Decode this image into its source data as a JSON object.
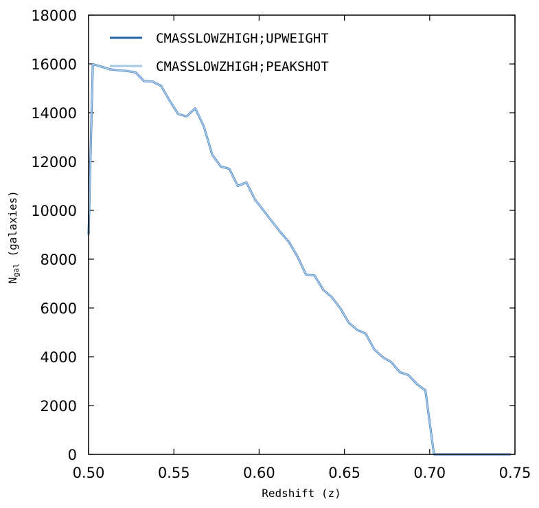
{
  "chart_data": {
    "type": "line",
    "xlabel": "Redshift (z)",
    "ylabel_main": "N",
    "ylabel_sub": "gal",
    "ylabel_rest": " (galaxies)",
    "xlim": [
      0.5,
      0.75
    ],
    "ylim": [
      0,
      18000
    ],
    "xticks": [
      0.5,
      0.55,
      0.6,
      0.65,
      0.7,
      0.75
    ],
    "xtick_labels": [
      "0.50",
      "0.55",
      "0.60",
      "0.65",
      "0.70",
      "0.75"
    ],
    "yticks": [
      0,
      2000,
      4000,
      6000,
      8000,
      10000,
      12000,
      14000,
      16000,
      18000
    ],
    "ytick_labels": [
      "0",
      "2000",
      "4000",
      "6000",
      "8000",
      "10000",
      "12000",
      "14000",
      "16000",
      "18000"
    ],
    "grid": false,
    "legend_position": "top-left",
    "x": [
      0.5,
      0.5025,
      0.5075,
      0.5125,
      0.5175,
      0.5225,
      0.5275,
      0.5325,
      0.5375,
      0.5425,
      0.5475,
      0.5525,
      0.5575,
      0.5625,
      0.5675,
      0.5725,
      0.5775,
      0.5825,
      0.5875,
      0.5925,
      0.5975,
      0.6025,
      0.6075,
      0.6125,
      0.6175,
      0.6225,
      0.6275,
      0.6325,
      0.6375,
      0.6425,
      0.6475,
      0.6525,
      0.6575,
      0.6625,
      0.6675,
      0.6725,
      0.6775,
      0.6825,
      0.6875,
      0.6925,
      0.6975,
      0.7025,
      0.7075,
      0.7125,
      0.7175,
      0.7225,
      0.7275,
      0.7325,
      0.7375,
      0.7425,
      0.7475
    ],
    "series": [
      {
        "name": "CMASSLOWZHIGH;UPWEIGHT",
        "color": "#2166ac",
        "values": [
          9000,
          15990,
          15890,
          15780,
          15740,
          15710,
          15660,
          15300,
          15280,
          15100,
          14500,
          13950,
          13850,
          14180,
          13450,
          12280,
          11800,
          11700,
          11000,
          11150,
          10450,
          10000,
          9550,
          9100,
          8700,
          8100,
          7370,
          7330,
          6750,
          6450,
          6000,
          5400,
          5100,
          4950,
          4300,
          3980,
          3780,
          3370,
          3250,
          2880,
          2620,
          0,
          0,
          0,
          0,
          0,
          0,
          0,
          0,
          0,
          0
        ]
      },
      {
        "name": "CMASSLOWZHIGH;PEAKSHOT",
        "color": "#a6c8e8",
        "values": [
          9000,
          15990,
          15890,
          15780,
          15740,
          15710,
          15660,
          15300,
          15280,
          15100,
          14500,
          13950,
          13850,
          14180,
          13450,
          12280,
          11800,
          11700,
          11000,
          11150,
          10450,
          10000,
          9550,
          9100,
          8700,
          8100,
          7370,
          7330,
          6750,
          6450,
          6000,
          5400,
          5100,
          4950,
          4300,
          3980,
          3780,
          3370,
          3250,
          2880,
          2620,
          0,
          0,
          0,
          0,
          0,
          0,
          0,
          0,
          0,
          0
        ]
      }
    ]
  }
}
